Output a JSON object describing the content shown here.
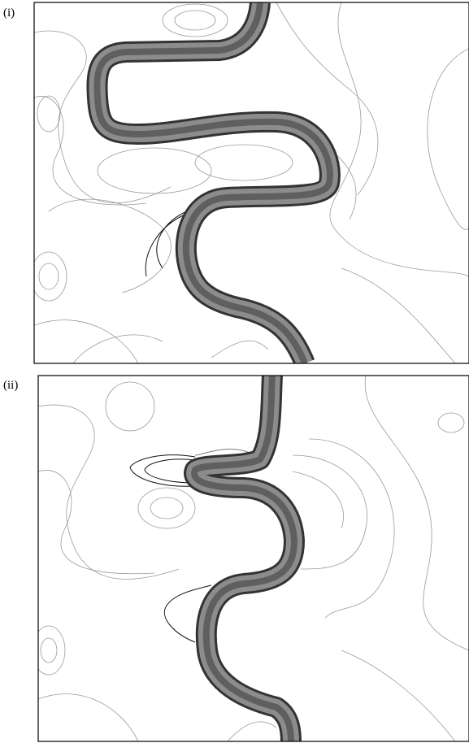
{
  "panels": [
    {
      "label": "(i)"
    },
    {
      "label": "(ii)"
    }
  ]
}
